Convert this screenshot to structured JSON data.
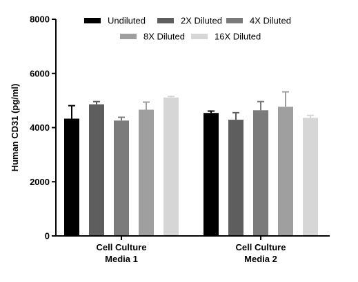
{
  "chart_data": {
    "type": "bar",
    "title": "",
    "xlabel": "",
    "ylabel": "Human CD31 (pg/ml)",
    "ylim": [
      0,
      8000
    ],
    "yticks": [
      0,
      2000,
      4000,
      6000,
      8000
    ],
    "ytick_labels": [
      "0",
      "2000",
      "4000",
      "6000",
      "8000"
    ],
    "grid": false,
    "legend_position": "top",
    "categories": [
      [
        "Cell  Culture",
        "Media 1"
      ],
      [
        "Cell  Culture",
        "Media 2"
      ]
    ],
    "series": [
      {
        "name": "Undiluted",
        "color": "#000000",
        "values": [
          4330,
          4540
        ],
        "errors": [
          480,
          70
        ]
      },
      {
        "name": "2X Diluted",
        "color": "#5e5e5e",
        "values": [
          4860,
          4290
        ],
        "errors": [
          100,
          260
        ]
      },
      {
        "name": "4X Diluted",
        "color": "#7b7b7b",
        "values": [
          4260,
          4640
        ],
        "errors": [
          120,
          320
        ]
      },
      {
        "name": "8X Diluted",
        "color": "#9f9f9f",
        "values": [
          4660,
          4770
        ],
        "errors": [
          280,
          550
        ]
      },
      {
        "name": "16X Diluted",
        "color": "#d6d6d6",
        "values": [
          5110,
          4360
        ],
        "errors": [
          40,
          90
        ]
      }
    ]
  }
}
